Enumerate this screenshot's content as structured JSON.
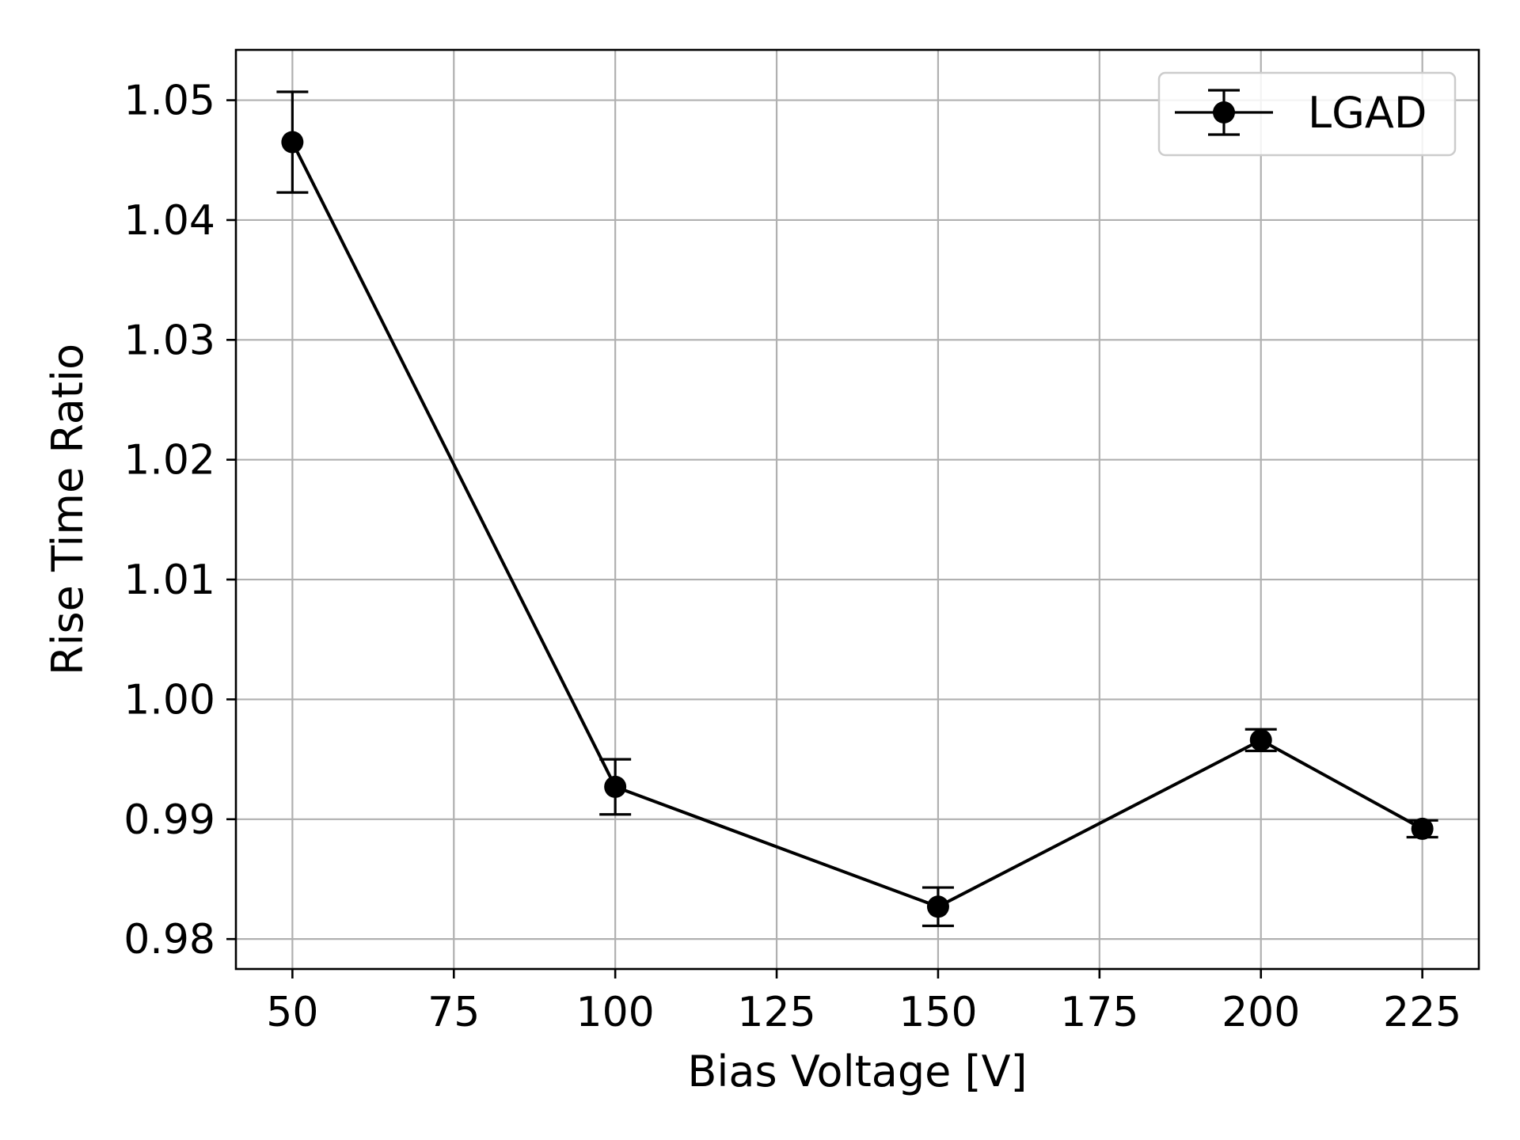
{
  "chart_data": {
    "type": "line",
    "xlabel": "Bias Voltage [V]",
    "ylabel": "Rise Time Ratio",
    "xlim": [
      41.25,
      233.75
    ],
    "ylim": [
      0.9775,
      1.0542
    ],
    "xticks": [
      50,
      75,
      100,
      125,
      150,
      175,
      200,
      225
    ],
    "xtick_labels": [
      "50",
      "75",
      "100",
      "125",
      "150",
      "175",
      "200",
      "225"
    ],
    "yticks": [
      0.98,
      0.99,
      1.0,
      1.01,
      1.02,
      1.03,
      1.04,
      1.05
    ],
    "ytick_labels": [
      "0.98",
      "0.99",
      "1.00",
      "1.01",
      "1.02",
      "1.03",
      "1.04",
      "1.05"
    ],
    "grid": true,
    "legend_position": "top-right",
    "series": [
      {
        "name": "LGAD",
        "color": "#000000",
        "marker": "circle",
        "x": [
          50,
          100,
          150,
          200,
          225
        ],
        "y": [
          1.0465,
          0.9927,
          0.9827,
          0.9966,
          0.9892
        ],
        "yerr": [
          0.0042,
          0.0023,
          0.0016,
          0.0009,
          0.0007
        ]
      }
    ]
  }
}
